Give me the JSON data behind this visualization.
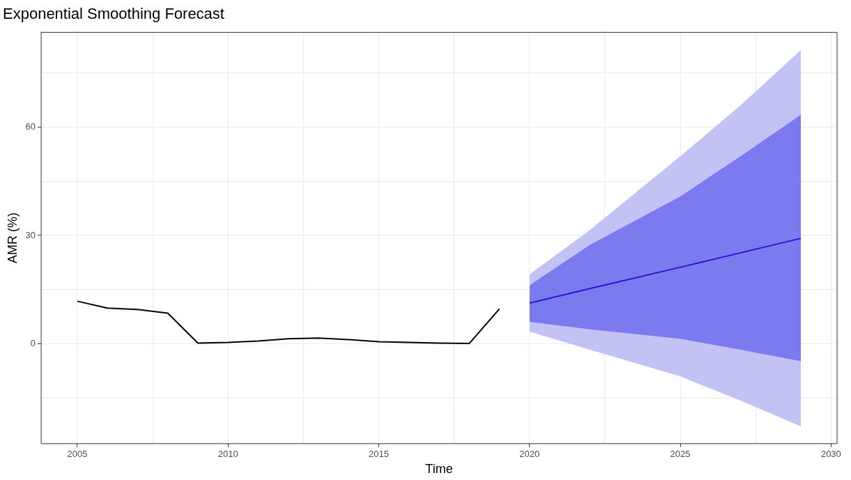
{
  "chart_data": {
    "type": "line",
    "title": "Exponential Smoothing Forecast",
    "xlabel": "Time",
    "ylabel": "AMR (%)",
    "xlim": [
      2003.8,
      2030.2
    ],
    "ylim": [
      -27.6,
      86.2
    ],
    "xticks": [
      {
        "value": 2005,
        "label": "2005"
      },
      {
        "value": 2007.5,
        "label": null
      },
      {
        "value": 2010,
        "label": "2010"
      },
      {
        "value": 2012.5,
        "label": null
      },
      {
        "value": 2015,
        "label": "2015"
      },
      {
        "value": 2017.5,
        "label": null
      },
      {
        "value": 2020,
        "label": "2020"
      },
      {
        "value": 2022.5,
        "label": null
      },
      {
        "value": 2025,
        "label": "2025"
      },
      {
        "value": 2027.5,
        "label": null
      },
      {
        "value": 2030,
        "label": "2030"
      }
    ],
    "yticks": [
      {
        "value": -15,
        "label": null
      },
      0,
      {
        "value": 15,
        "label": null
      },
      30,
      {
        "value": 45,
        "label": null
      },
      60,
      {
        "value": 75,
        "label": null
      }
    ],
    "grid": true,
    "legend": false,
    "marker": "none",
    "line_style": "solid",
    "series": [
      {
        "color": "#000000",
        "x": [
          2005,
          2006,
          2007,
          2008,
          2009,
          2010,
          2011,
          2012,
          2013,
          2014,
          2015,
          2016,
          2017,
          2018,
          2019
        ],
        "values": [
          11.8,
          9.9,
          9.5,
          8.5,
          0.2,
          0.4,
          0.8,
          1.4,
          1.6,
          1.2,
          0.6,
          0.4,
          0.2,
          0.1,
          9.7
        ]
      },
      {
        "type": "area",
        "color": "#c2c2f4",
        "x": [
          2020,
          2022,
          2025,
          2027,
          2029
        ],
        "values": [
          null,
          null,
          null,
          null,
          null
        ],
        "lower": [
          3.4,
          -1.6,
          -9.0,
          -15.7,
          -22.8
        ],
        "upper": [
          19.2,
          31.5,
          51.9,
          66.0,
          81.3
        ]
      },
      {
        "type": "area",
        "color": "#7b7bef",
        "x": [
          2020,
          2022,
          2025,
          2027,
          2029
        ],
        "values": [
          null,
          null,
          null,
          null,
          null
        ],
        "lower": [
          6.1,
          4.0,
          1.4,
          -1.6,
          -4.8
        ],
        "upper": [
          16.2,
          27.4,
          40.8,
          51.9,
          63.4
        ]
      },
      {
        "color": "#1a1ad6",
        "x": [
          2020,
          2022,
          2025,
          2027,
          2029
        ],
        "values": [
          11.3,
          15.3,
          21.2,
          25.2,
          29.2
        ]
      }
    ]
  }
}
